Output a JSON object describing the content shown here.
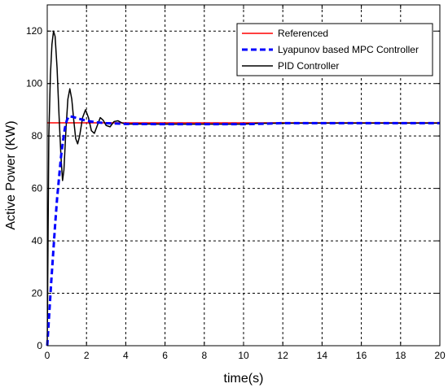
{
  "chart_data": {
    "type": "line",
    "title": "",
    "xlabel": "time(s)",
    "ylabel": "Active Power (KW)",
    "xlim": [
      0,
      20
    ],
    "ylim": [
      0,
      130
    ],
    "xticks": [
      "0",
      "2",
      "4",
      "6",
      "8",
      "10",
      "12",
      "14",
      "16",
      "18",
      "20"
    ],
    "yticks": [
      "0",
      "20",
      "40",
      "60",
      "80",
      "100",
      "120"
    ],
    "grid": true,
    "legend_position": "top-right",
    "series": [
      {
        "name": "Referenced",
        "color": "#ff0000",
        "style": "solid",
        "points": [
          [
            0,
            85
          ],
          [
            20,
            85
          ]
        ]
      },
      {
        "name": "Lyapunov based MPC Controller",
        "color": "#0000ff",
        "style": "dashed",
        "points": [
          [
            0,
            0
          ],
          [
            0.1,
            12
          ],
          [
            0.2,
            24
          ],
          [
            0.3,
            35
          ],
          [
            0.4,
            46
          ],
          [
            0.5,
            56
          ],
          [
            0.6,
            64
          ],
          [
            0.7,
            72
          ],
          [
            0.8,
            78
          ],
          [
            0.9,
            83
          ],
          [
            1.0,
            86
          ],
          [
            1.1,
            87.5
          ],
          [
            1.3,
            87.3
          ],
          [
            1.6,
            86.6
          ],
          [
            2.0,
            85.8
          ],
          [
            2.5,
            85.2
          ],
          [
            3.0,
            84.9
          ],
          [
            4.0,
            84.6
          ],
          [
            6.0,
            84.5
          ],
          [
            8.0,
            84.5
          ],
          [
            10.0,
            84.5
          ],
          [
            10.7,
            84.6
          ],
          [
            12.0,
            84.9
          ],
          [
            14.0,
            84.9
          ],
          [
            16.0,
            84.9
          ],
          [
            18.0,
            84.9
          ],
          [
            20.0,
            84.9
          ]
        ]
      },
      {
        "name": "PID Controller",
        "color": "#000000",
        "style": "solid",
        "points": [
          [
            0,
            0
          ],
          [
            0.08,
            80
          ],
          [
            0.16,
            103
          ],
          [
            0.24,
            115
          ],
          [
            0.32,
            120
          ],
          [
            0.4,
            118
          ],
          [
            0.5,
            106
          ],
          [
            0.6,
            88
          ],
          [
            0.7,
            72
          ],
          [
            0.78,
            63
          ],
          [
            0.85,
            67
          ],
          [
            0.95,
            82
          ],
          [
            1.05,
            94
          ],
          [
            1.15,
            98
          ],
          [
            1.25,
            94
          ],
          [
            1.35,
            86
          ],
          [
            1.45,
            79
          ],
          [
            1.55,
            77
          ],
          [
            1.65,
            80
          ],
          [
            1.8,
            87
          ],
          [
            1.95,
            90
          ],
          [
            2.1,
            87
          ],
          [
            2.25,
            82
          ],
          [
            2.4,
            81
          ],
          [
            2.55,
            84
          ],
          [
            2.7,
            87
          ],
          [
            2.85,
            86
          ],
          [
            3.0,
            84
          ],
          [
            3.2,
            83.5
          ],
          [
            3.4,
            85.5
          ],
          [
            3.6,
            85.8
          ],
          [
            3.8,
            85
          ],
          [
            4.0,
            84.5
          ],
          [
            4.5,
            84.6
          ],
          [
            6.0,
            84.5
          ],
          [
            10.0,
            84.5
          ],
          [
            10.7,
            84.8
          ],
          [
            14.0,
            84.9
          ],
          [
            20.0,
            84.9
          ]
        ]
      }
    ]
  }
}
